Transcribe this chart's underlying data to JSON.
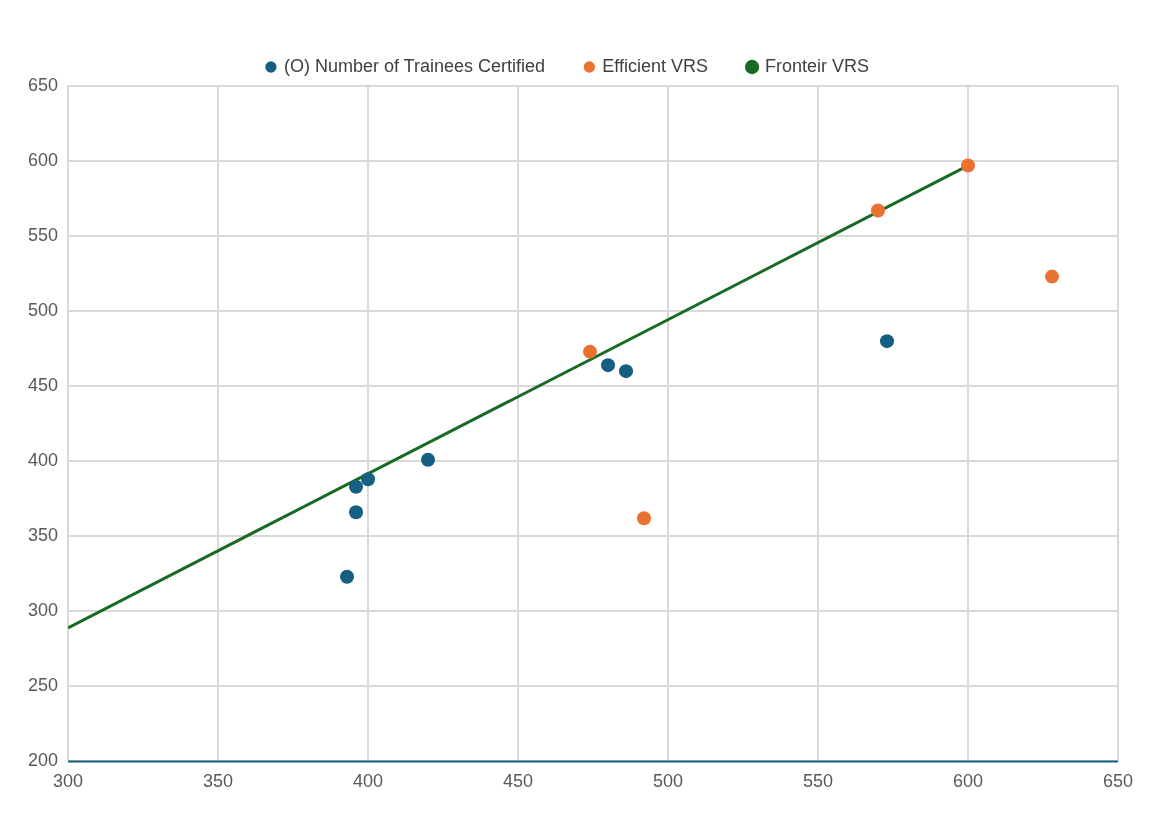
{
  "chart_data": {
    "type": "scatter",
    "series": [
      {
        "name": "(O) Number of Trainees Certified",
        "color": "#156082",
        "type": "scatter",
        "x": [
          393,
          396,
          396,
          400,
          420,
          480,
          486,
          573
        ],
        "values": [
          323,
          366,
          383,
          388,
          401,
          464,
          460,
          480
        ]
      },
      {
        "name": "Efficient VRS",
        "color": "#e97132",
        "type": "scatter",
        "x": [
          474,
          492,
          570,
          600,
          628
        ],
        "values": [
          473,
          362,
          567,
          597,
          523
        ]
      },
      {
        "name": "Fronteir VRS",
        "color": "#196b24",
        "type": "line",
        "x": [
          300,
          600
        ],
        "values": [
          289,
          597
        ],
        "marker": "none",
        "line_style": "solid"
      }
    ],
    "xlim": [
      300,
      650
    ],
    "xticks": [
      300,
      350,
      400,
      450,
      500,
      550,
      600,
      650
    ],
    "ylim": [
      200,
      650
    ],
    "yticks": [
      200,
      250,
      300,
      350,
      400,
      450,
      500,
      550,
      600,
      650
    ],
    "grid": true,
    "legend": "top",
    "marker": "circle"
  }
}
